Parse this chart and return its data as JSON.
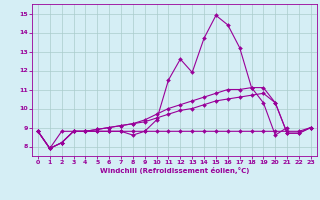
{
  "x": [
    0,
    1,
    2,
    3,
    4,
    5,
    6,
    7,
    8,
    9,
    10,
    11,
    12,
    13,
    14,
    15,
    16,
    17,
    18,
    19,
    20,
    21,
    22,
    23
  ],
  "line1": [
    8.8,
    7.9,
    8.2,
    8.8,
    8.8,
    8.8,
    8.8,
    8.8,
    8.6,
    8.8,
    9.4,
    11.5,
    12.6,
    11.9,
    13.7,
    14.9,
    14.4,
    13.2,
    11.1,
    10.3,
    8.6,
    9.0,
    null,
    null
  ],
  "line2": [
    8.8,
    7.9,
    8.2,
    8.8,
    8.8,
    8.9,
    9.0,
    9.1,
    9.2,
    9.3,
    9.5,
    9.7,
    9.9,
    10.0,
    10.2,
    10.4,
    10.5,
    10.6,
    10.7,
    10.8,
    10.3,
    8.7,
    8.7,
    9.0
  ],
  "line3": [
    8.8,
    7.9,
    8.2,
    8.8,
    8.8,
    8.9,
    9.0,
    9.1,
    9.2,
    9.4,
    9.7,
    10.0,
    10.2,
    10.4,
    10.6,
    10.8,
    11.0,
    11.0,
    11.1,
    11.1,
    10.3,
    8.7,
    8.7,
    9.0
  ],
  "line4": [
    8.8,
    7.9,
    8.8,
    8.8,
    8.8,
    8.8,
    8.8,
    8.8,
    8.8,
    8.8,
    8.8,
    8.8,
    8.8,
    8.8,
    8.8,
    8.8,
    8.8,
    8.8,
    8.8,
    8.8,
    8.8,
    8.8,
    8.8,
    9.0
  ],
  "line_color": "#990099",
  "bg_color": "#d5eef5",
  "grid_color": "#aacccc",
  "ylim": [
    7.5,
    15.5
  ],
  "xlim": [
    -0.5,
    23.5
  ],
  "yticks": [
    8,
    9,
    10,
    11,
    12,
    13,
    14,
    15
  ],
  "xticks": [
    0,
    1,
    2,
    3,
    4,
    5,
    6,
    7,
    8,
    9,
    10,
    11,
    12,
    13,
    14,
    15,
    16,
    17,
    18,
    19,
    20,
    21,
    22,
    23
  ],
  "xlabel": "Windchill (Refroidissement éolien,°C)",
  "tick_fontsize": 4.5,
  "label_fontsize": 5.0,
  "linewidth": 0.8,
  "markersize": 2.0
}
